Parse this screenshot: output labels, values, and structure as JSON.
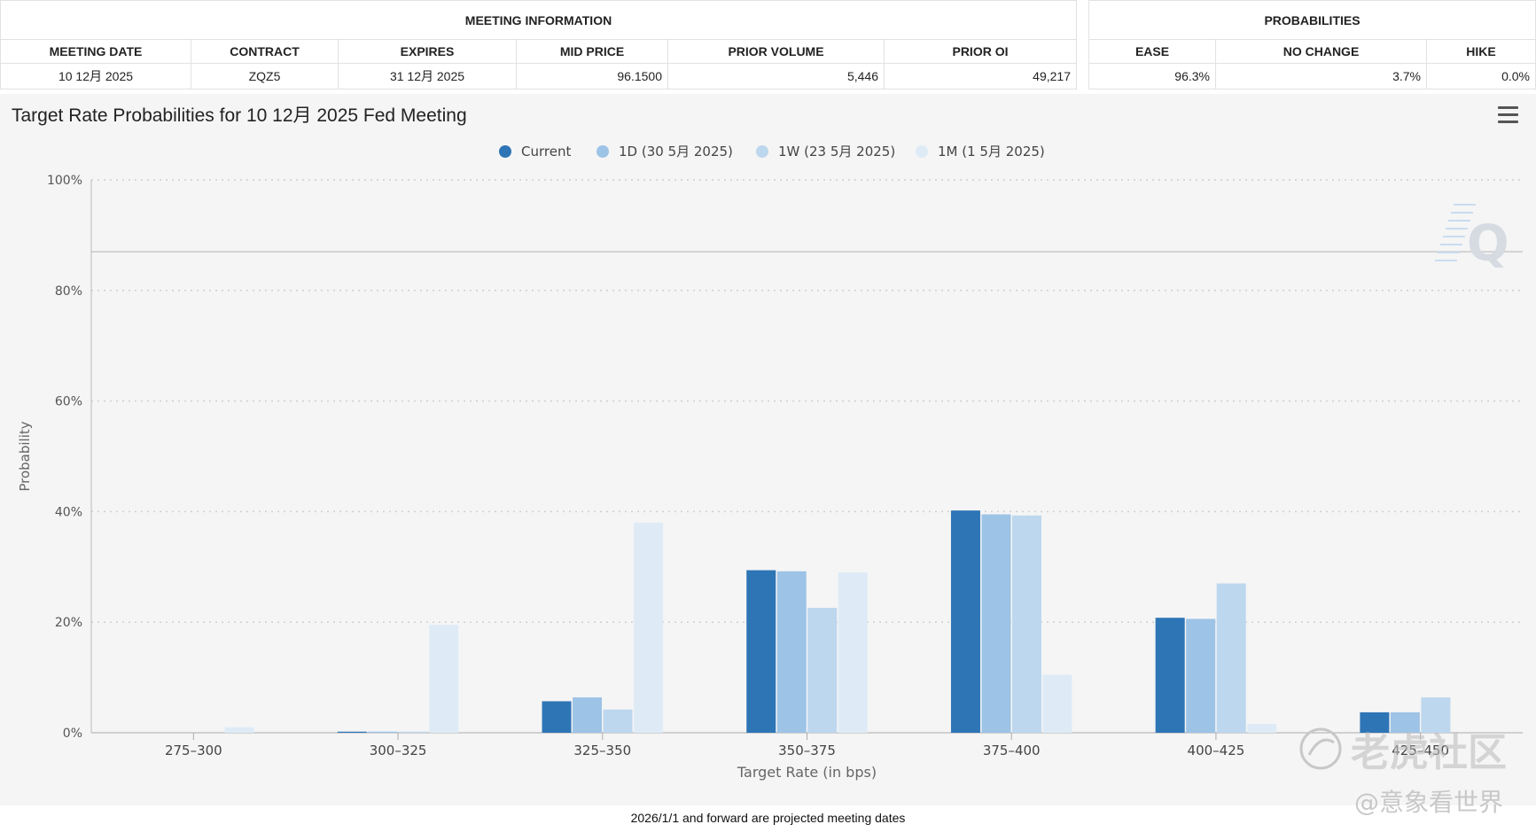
{
  "meeting_info": {
    "title": "MEETING INFORMATION",
    "headers": [
      "MEETING DATE",
      "CONTRACT",
      "EXPIRES",
      "MID PRICE",
      "PRIOR VOLUME",
      "PRIOR OI"
    ],
    "row": [
      "10 12月 2025",
      "ZQZ5",
      "31 12月 2025",
      "96.1500",
      "5,446",
      "49,217"
    ]
  },
  "probabilities": {
    "title": "PROBABILITIES",
    "headers": [
      "EASE",
      "NO CHANGE",
      "HIKE"
    ],
    "row": [
      "96.3%",
      "3.7%",
      "0.0%"
    ]
  },
  "chart_data": {
    "type": "bar",
    "title": "Target Rate Probabilities for 10 12月 2025 Fed Meeting",
    "xlabel": "Target Rate (in bps)",
    "ylabel": "Probability",
    "ylim": [
      0,
      100
    ],
    "yticks": [
      "0%",
      "20%",
      "40%",
      "60%",
      "80%",
      "100%"
    ],
    "grid": true,
    "legend_position": "top-center",
    "categories": [
      "275-300",
      "300-325",
      "325-350",
      "350-375",
      "375-400",
      "400-425",
      "425-450"
    ],
    "series": [
      {
        "name": "Current",
        "color": "#2e75b6",
        "values": [
          0.0,
          0.2,
          5.7,
          29.4,
          40.2,
          20.8,
          3.7
        ]
      },
      {
        "name": "1D (30 5月 2025)",
        "color": "#9dc3e6",
        "values": [
          0.0,
          0.2,
          6.4,
          29.2,
          39.5,
          20.6,
          3.7
        ]
      },
      {
        "name": "1W (23 5月 2025)",
        "color": "#bdd7ee",
        "values": [
          0.0,
          0.2,
          4.2,
          22.6,
          39.3,
          27.0,
          6.4
        ]
      },
      {
        "name": "1M (1 5月 2025)",
        "color": "#deebf7",
        "values": [
          1.0,
          19.5,
          38.0,
          29.0,
          10.5,
          1.6,
          0.0
        ]
      }
    ],
    "reference_line": 87
  },
  "footer": "2026/1/1 and forward are projected meeting dates",
  "watermark": {
    "handle": "老虎社区",
    "name": "@意象看世界"
  }
}
